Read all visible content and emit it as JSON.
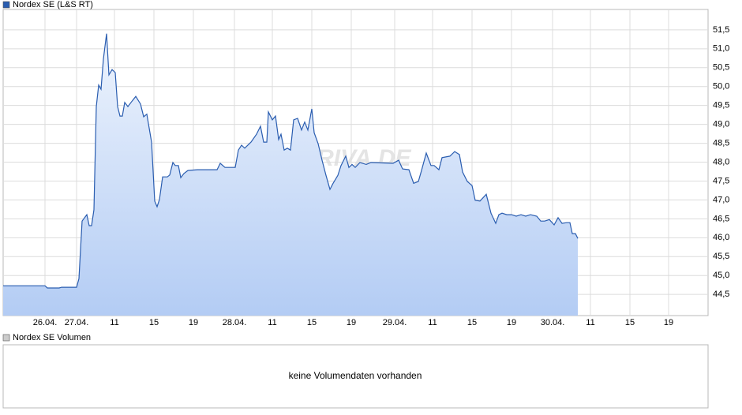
{
  "chart_data": [
    {
      "type": "area",
      "series": [
        {
          "name": "Nordex SE (L&S RT)",
          "color": "#2a5db0",
          "x": [
            0,
            4.24,
            4.48,
            5.68,
            5.92,
            7.44,
            7.68,
            8,
            8.48,
            8.72,
            8.96,
            9.2,
            9.44,
            9.68,
            9.92,
            10.16,
            10.48,
            10.72,
            11.04,
            11.36,
            11.6,
            11.84,
            12.08,
            12.32,
            12.64,
            12.96,
            13.44,
            13.92,
            14.24,
            14.56,
            15.04,
            15.36,
            15.6,
            15.84,
            16.16,
            16.64,
            16.88,
            17.2,
            17.44,
            17.76,
            18,
            18.32,
            18.72,
            19.68,
            21.68,
            22,
            22.48,
            23.52,
            23.84,
            24.16,
            24.48,
            25.12,
            25.68,
            26.08,
            26.4,
            26.72,
            26.88,
            27.28,
            27.6,
            27.92,
            28.16,
            28.48,
            28.8,
            29.12,
            29.44,
            29.84,
            30.24,
            30.56,
            30.88,
            31.28,
            31.52,
            31.92,
            32.32,
            32.72,
            33.12,
            33.44,
            33.92,
            34.24,
            34.72,
            35.04,
            35.36,
            35.68,
            36.16,
            36.8,
            37.28,
            39.52,
            40.08,
            40.48,
            41.12,
            41.6,
            42.08,
            42.4,
            42.88,
            43.36,
            43.68,
            44.16,
            44.48,
            45.28,
            45.76,
            46.24,
            46.56,
            47.04,
            47.52,
            47.84,
            48.32,
            48.96,
            49.44,
            49.92,
            50.24,
            50.56,
            51.04,
            51.52,
            52,
            52.48,
            52.96,
            53.44,
            54.08,
            54.48,
            54.88,
            55.36,
            55.84,
            56.24,
            56.64,
            57.12,
            57.44,
            57.68,
            58,
            58.24
          ],
          "values": [
            44.73,
            44.73,
            44.67,
            44.67,
            44.69,
            44.69,
            44.92,
            46.44,
            46.61,
            46.32,
            46.32,
            46.74,
            49.47,
            50.04,
            49.93,
            50.73,
            51.4,
            50.31,
            50.45,
            50.37,
            49.47,
            49.22,
            49.22,
            49.58,
            49.47,
            49.58,
            49.74,
            49.54,
            49.2,
            49.27,
            48.53,
            46.97,
            46.82,
            47.01,
            47.61,
            47.61,
            47.66,
            47.99,
            47.91,
            47.91,
            47.59,
            47.7,
            47.78,
            47.8,
            47.8,
            47.97,
            47.86,
            47.86,
            48.32,
            48.45,
            48.37,
            48.53,
            48.74,
            48.95,
            48.53,
            48.53,
            49.33,
            49.12,
            49.22,
            48.6,
            48.74,
            48.32,
            48.37,
            48.32,
            49.12,
            49.16,
            48.85,
            49.06,
            48.85,
            49.41,
            48.78,
            48.49,
            48.05,
            47.65,
            47.28,
            47.44,
            47.65,
            47.91,
            48.16,
            47.86,
            47.94,
            47.86,
            47.99,
            47.94,
            47.99,
            47.97,
            48.05,
            47.82,
            47.8,
            47.44,
            47.49,
            47.78,
            48.24,
            47.91,
            47.91,
            47.8,
            48.12,
            48.16,
            48.28,
            48.2,
            47.74,
            47.49,
            47.38,
            46.99,
            46.97,
            47.15,
            46.65,
            46.38,
            46.61,
            46.65,
            46.61,
            46.61,
            46.57,
            46.61,
            46.57,
            46.61,
            46.57,
            46.44,
            46.44,
            46.48,
            46.34,
            46.53,
            46.38,
            46.4,
            46.4,
            46.11,
            46.11,
            45.98
          ]
        }
      ],
      "xlim": [
        0,
        71.44
      ],
      "xticks": [
        {
          "value": 4.24,
          "label": "26.04."
        },
        {
          "value": 7.44,
          "label": "27.04."
        },
        {
          "value": 11.28,
          "label": "11"
        },
        {
          "value": 15.28,
          "label": "15"
        },
        {
          "value": 19.28,
          "label": "19"
        },
        {
          "value": 23.44,
          "label": "28.04."
        },
        {
          "value": 27.28,
          "label": "11"
        },
        {
          "value": 31.28,
          "label": "15"
        },
        {
          "value": 35.28,
          "label": "19"
        },
        {
          "value": 39.68,
          "label": "29.04."
        },
        {
          "value": 43.52,
          "label": "11"
        },
        {
          "value": 47.52,
          "label": "15"
        },
        {
          "value": 51.52,
          "label": "19"
        },
        {
          "value": 55.68,
          "label": "30.04."
        },
        {
          "value": 59.52,
          "label": "11"
        },
        {
          "value": 63.52,
          "label": "15"
        },
        {
          "value": 67.44,
          "label": "19"
        }
      ],
      "ylim": [
        43.94,
        52.04
      ],
      "yticks": [
        {
          "value": 44.5,
          "label": "44,5"
        },
        {
          "value": 45,
          "label": "45,0"
        },
        {
          "value": 45.5,
          "label": "45,5"
        },
        {
          "value": 46,
          "label": "46,0"
        },
        {
          "value": 46.5,
          "label": "46,5"
        },
        {
          "value": 47,
          "label": "47,0"
        },
        {
          "value": 47.5,
          "label": "47,5"
        },
        {
          "value": 48,
          "label": "48,0"
        },
        {
          "value": 48.5,
          "label": "48,5"
        },
        {
          "value": 49,
          "label": "49,0"
        },
        {
          "value": 49.5,
          "label": "49,5"
        },
        {
          "value": 50,
          "label": "50,0"
        },
        {
          "value": 50.5,
          "label": "50,5"
        },
        {
          "value": 51,
          "label": "51,0"
        },
        {
          "value": 51.5,
          "label": "51,5"
        }
      ],
      "grid": true,
      "watermark": "ARIVA.DE"
    },
    {
      "type": "bar",
      "series": [
        {
          "name": "Nordex SE Volumen",
          "color": "#cccccc",
          "values": []
        }
      ],
      "annotation": "keine Volumendaten vorhanden"
    }
  ]
}
